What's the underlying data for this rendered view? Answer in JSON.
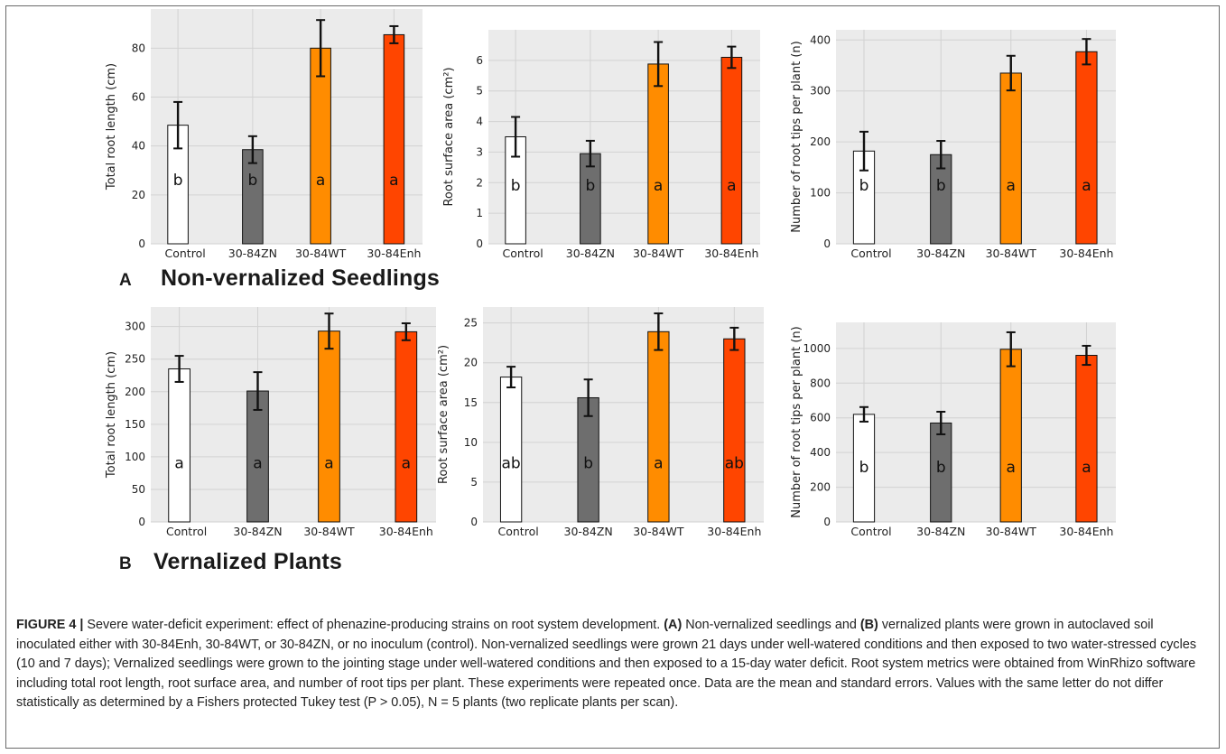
{
  "panels": [
    {
      "letter": "A",
      "title": "Non-vernalized Seedlings",
      "charts": [
        {
          "type": "bar",
          "ylabel": "Total root length (cm)",
          "categories": [
            "Control",
            "30-84ZN",
            "30-84WT",
            "30-84Enh"
          ],
          "values": [
            48.5,
            38.5,
            80,
            85.5
          ],
          "errors": [
            9.5,
            5.5,
            11.5,
            3.5
          ],
          "letters": [
            "b",
            "b",
            "a",
            "a"
          ],
          "yticks": [
            0,
            20,
            40,
            60,
            80
          ],
          "ylim": [
            0,
            96
          ]
        },
        {
          "type": "bar",
          "ylabel": "Root surface area (cm²)",
          "categories": [
            "Control",
            "30-84ZN",
            "30-84WT",
            "30-84Enh"
          ],
          "values": [
            3.5,
            2.95,
            5.88,
            6.1
          ],
          "errors": [
            0.65,
            0.42,
            0.72,
            0.35
          ],
          "letters": [
            "b",
            "b",
            "a",
            "a"
          ],
          "yticks": [
            0,
            1,
            2,
            3,
            4,
            5,
            6
          ],
          "ylim": [
            0,
            7
          ]
        },
        {
          "type": "bar",
          "ylabel": "Number of root tips per plant (n)",
          "categories": [
            "Control",
            "30-84ZN",
            "30-84WT",
            "30-84Enh"
          ],
          "values": [
            182,
            175,
            335,
            377
          ],
          "errors": [
            38,
            27,
            34,
            25
          ],
          "letters": [
            "b",
            "b",
            "a",
            "a"
          ],
          "yticks": [
            0,
            100,
            200,
            300,
            400
          ],
          "ylim": [
            0,
            420
          ]
        }
      ]
    },
    {
      "letter": "B",
      "title": "Vernalized Plants",
      "charts": [
        {
          "type": "bar",
          "ylabel": "Total root length (cm)",
          "categories": [
            "Control",
            "30-84ZN",
            "30-84WT",
            "30-84Enh"
          ],
          "values": [
            235,
            201,
            293,
            292
          ],
          "errors": [
            20,
            29,
            27,
            13
          ],
          "letters": [
            "a",
            "a",
            "a",
            "a"
          ],
          "yticks": [
            0,
            50,
            100,
            150,
            200,
            250,
            300
          ],
          "ylim": [
            0,
            330
          ]
        },
        {
          "type": "bar",
          "ylabel": "Root surface area (cm²)",
          "categories": [
            "Control",
            "30-84ZN",
            "30-84WT",
            "30-84Enh"
          ],
          "values": [
            18.2,
            15.6,
            23.9,
            23.0
          ],
          "errors": [
            1.3,
            2.3,
            2.3,
            1.4
          ],
          "letters": [
            "ab",
            "b",
            "a",
            "ab"
          ],
          "yticks": [
            0,
            5,
            10,
            15,
            20,
            25
          ],
          "ylim": [
            0,
            27
          ]
        },
        {
          "type": "bar",
          "ylabel": "Number of root tips per plant (n)",
          "categories": [
            "Control",
            "30-84ZN",
            "30-84WT",
            "30-84Enh"
          ],
          "values": [
            620,
            570,
            995,
            960
          ],
          "errors": [
            42,
            65,
            98,
            55
          ],
          "letters": [
            "b",
            "b",
            "a",
            "a"
          ],
          "yticks": [
            0,
            200,
            400,
            600,
            800,
            1000
          ],
          "ylim": [
            0,
            1150
          ]
        }
      ]
    }
  ],
  "bar_colors": [
    "#ffffff",
    "#6e6e6e",
    "#ff8c00",
    "#ff4500"
  ],
  "caption": {
    "figure_label": "FIGURE 4 |",
    "part1": " Severe water-deficit experiment: effect of phenazine-producing strains on root system development. ",
    "label_a": "(A)",
    "part2": " Non-vernalized seedlings and ",
    "label_b": "(B)",
    "part3": " vernalized plants were grown in autoclaved soil inoculated either with 30-84Enh, 30-84WT, or 30-84ZN, or no inoculum (control). Non-vernalized seedlings were grown 21 days under well-watered conditions and then exposed to two water-stressed cycles (10 and 7 days); Vernalized seedlings were grown to the jointing stage under well-watered conditions and then exposed to a 15-day water deficit. Root system metrics were obtained from WinRhizo software including total root length, root surface area, and number of root tips per plant. These experiments were repeated once. Data are the mean and standard errors. Values with the same letter do not differ statistically as determined by a Fishers protected Tukey test (P > 0.05), N = 5 plants (two replicate plants per scan)."
  }
}
